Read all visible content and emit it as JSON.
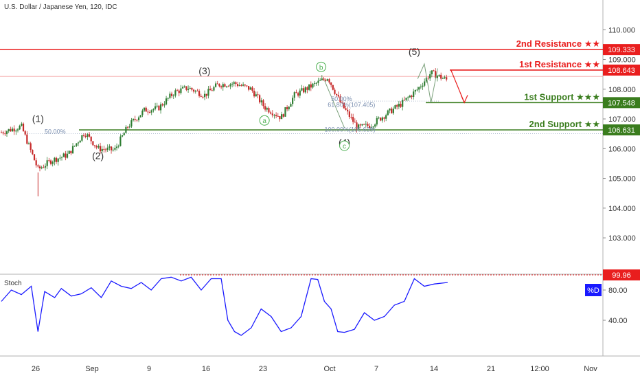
{
  "header": {
    "title": "U.S. Dollar / Japanese Yen, 120, IDC"
  },
  "stoch_panel": {
    "label": "Stoch",
    "value_badge": "99.96",
    "legend": "%D"
  },
  "colors": {
    "resistance": "#e91e1e",
    "support": "#3a7d1e",
    "candle_up": "#2e7d32",
    "candle_down": "#c62828",
    "stoch_line": "#1a1aff",
    "fib": "#7b8fb0",
    "wave_label": "#333333",
    "wave_circle": "#4caf50",
    "badge_blue": "#1a1aff"
  },
  "chart_data": [
    {
      "type": "candlestick",
      "title": "U.S. Dollar / Japanese Yen, 120, IDC",
      "ylim": [
        101.8,
        111.0
      ],
      "y_ticks": [
        "110.000",
        "109.000",
        "108.000",
        "107.000",
        "106.000",
        "105.000",
        "104.000",
        "103.000"
      ],
      "y_tick_values": [
        110,
        109,
        108,
        107,
        106,
        105,
        104,
        103
      ],
      "x_ticks": [
        "26",
        "Sep",
        "9",
        "16",
        "23",
        "Oct",
        "7",
        "14",
        "21",
        "12:00",
        "Nov"
      ],
      "grid": false,
      "price_path": [
        [
          0,
          106.55
        ],
        [
          6,
          106.75
        ],
        [
          11,
          105.3
        ],
        [
          15,
          105.6
        ],
        [
          20,
          105.8
        ],
        [
          25,
          106.55
        ],
        [
          29,
          106.0
        ],
        [
          34,
          105.95
        ],
        [
          38,
          106.75
        ],
        [
          43,
          107.3
        ],
        [
          47,
          107.35
        ],
        [
          52,
          107.9
        ],
        [
          56,
          108.05
        ],
        [
          61,
          107.8
        ],
        [
          65,
          108.15
        ],
        [
          70,
          108.2
        ],
        [
          75,
          108.0
        ],
        [
          79,
          107.4
        ],
        [
          84,
          107.05
        ],
        [
          88,
          107.8
        ],
        [
          93,
          108.1
        ],
        [
          98,
          108.4
        ],
        [
          102,
          107.5
        ],
        [
          107,
          106.7
        ],
        [
          111,
          106.8
        ],
        [
          116,
          107.2
        ],
        [
          120,
          107.5
        ],
        [
          125,
          108.0
        ],
        [
          129,
          108.55
        ],
        [
          134,
          108.3
        ]
      ],
      "levels": [
        {
          "name": "2nd Resistance ★★",
          "value": 109.333,
          "kind": "resistance"
        },
        {
          "name": "1st Resistance ★★",
          "value": 108.643,
          "kind": "resistance"
        },
        {
          "name": "1st Support ★★★",
          "value": 107.548,
          "kind": "support"
        },
        {
          "name": "2nd Support ★★",
          "value": 106.631,
          "kind": "support"
        }
      ],
      "level_badges": [
        "109.333",
        "108.643",
        "107.548",
        "106.631"
      ],
      "wave_labels": [
        {
          "text": "(1)",
          "x": 11,
          "y": 106.9
        },
        {
          "text": "(2)",
          "x": 29,
          "y": 105.65
        },
        {
          "text": "(3)",
          "x": 61,
          "y": 108.5
        },
        {
          "text": "(4)",
          "x": 103,
          "y": 106.1
        },
        {
          "text": "(5)",
          "x": 124,
          "y": 109.15
        }
      ],
      "wave_circles": [
        {
          "text": "a",
          "x": 79,
          "y": 106.95
        },
        {
          "text": "b",
          "x": 96,
          "y": 108.75
        },
        {
          "text": "c",
          "x": 103,
          "y": 106.1
        }
      ],
      "fib_labels": [
        {
          "text": "50.00%",
          "x": 13,
          "y": 106.5
        },
        {
          "text": "50.00%",
          "x": 99,
          "y": 107.6
        },
        {
          "text": "61.80%(107.405)",
          "x": 98,
          "y": 107.4
        },
        {
          "text": "100.00%(106.639)",
          "x": 97,
          "y": 106.57
        }
      ]
    },
    {
      "type": "line",
      "title": "Stoch",
      "ylim": [
        0,
        100
      ],
      "y_ticks": [
        "80.00",
        "40.00"
      ],
      "y_tick_values": [
        80,
        40
      ],
      "reference_level": 99.96,
      "series": [
        {
          "name": "%D",
          "x": [
            0,
            3,
            6,
            9,
            11,
            13,
            16,
            18,
            21,
            24,
            27,
            30,
            33,
            36,
            39,
            42,
            45,
            48,
            51,
            54,
            57,
            60,
            63,
            66,
            68,
            70,
            72,
            75,
            78,
            81,
            84,
            87,
            90,
            93,
            95,
            97,
            99,
            101,
            103,
            106,
            109,
            112,
            115,
            118,
            121,
            124,
            127,
            130,
            134
          ],
          "values": [
            65,
            80,
            74,
            85,
            25,
            78,
            70,
            82,
            72,
            75,
            83,
            70,
            92,
            85,
            82,
            90,
            80,
            95,
            97,
            92,
            97,
            80,
            95,
            95,
            40,
            25,
            20,
            30,
            55,
            45,
            25,
            30,
            45,
            95,
            94,
            65,
            55,
            25,
            24,
            28,
            50,
            40,
            45,
            60,
            65,
            95,
            85,
            88,
            90
          ]
        }
      ]
    }
  ]
}
